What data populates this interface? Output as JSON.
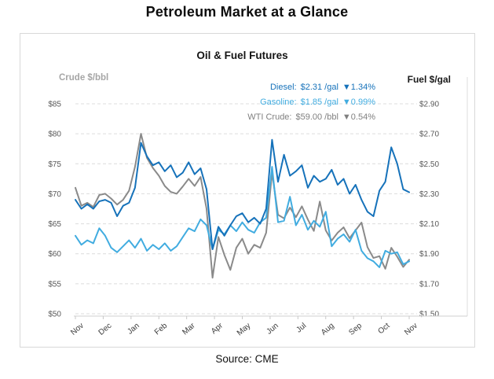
{
  "page_title": "Petroleum Market at a Glance",
  "source_note": "Source: CME",
  "legend": [
    {
      "label": "Diesel:",
      "value": "$2.31 /gal",
      "change": "▼1.34%",
      "color": "#1672ba"
    },
    {
      "label": "Gasoline:",
      "value": "$1.85 /gal",
      "change": "▼0.99%",
      "color": "#41ace0"
    },
    {
      "label": "WTI Crude:",
      "value": "$59.00 /bbl",
      "change": "▼0.54%",
      "color": "#808080"
    }
  ],
  "chart_data": {
    "type": "line",
    "title": "Oil & Fuel Futures",
    "left_axis": {
      "label": "Crude $/bbl",
      "min": 50,
      "max": 85,
      "tick_step": 5,
      "tick_labels": [
        "$50",
        "$55",
        "$60",
        "$65",
        "$70",
        "$75",
        "$80",
        "$85"
      ]
    },
    "right_axis": {
      "label": "Fuel $/gal",
      "min": 1.5,
      "max": 2.9,
      "tick_step": 0.2,
      "tick_labels": [
        "$1.50",
        "$1.70",
        "$1.90",
        "$2.10",
        "$2.30",
        "$2.50",
        "$2.70",
        "$2.90"
      ]
    },
    "x_tick_labels": [
      "Nov",
      "Dec",
      "Jan",
      "Feb",
      "Mar",
      "Apr",
      "May",
      "Jun",
      "Jul",
      "Aug",
      "Sep",
      "Oct",
      "Nov"
    ],
    "grid": "horizontal-dashed",
    "legend_position": "top-right",
    "series": [
      {
        "name": "WTI Crude",
        "axis": "left",
        "unit": "$/bbl",
        "color": "#8a8a8a",
        "last_value": 59.0,
        "values": [
          71.0,
          68.0,
          68.5,
          67.8,
          69.8,
          70.0,
          69.2,
          68.2,
          69.0,
          70.5,
          74.5,
          80.0,
          76.0,
          74.3,
          73.0,
          71.3,
          70.3,
          70.0,
          71.2,
          72.5,
          71.3,
          72.8,
          67.5,
          56.0,
          62.8,
          59.8,
          57.3,
          61.0,
          62.5,
          60.0,
          61.5,
          61.0,
          63.5,
          73.5,
          66.5,
          65.9,
          67.7,
          66.1,
          67.9,
          65.7,
          63.8,
          68.7,
          63.9,
          62.2,
          63.5,
          64.4,
          62.6,
          63.9,
          65.2,
          61.1,
          59.3,
          59.6,
          57.5,
          61.0,
          59.5,
          57.8,
          59.0
        ]
      },
      {
        "name": "Gasoline",
        "axis": "right",
        "unit": "$/gal",
        "color": "#41ace0",
        "last_value": 1.85,
        "values": [
          2.02,
          1.96,
          1.99,
          1.97,
          2.07,
          2.02,
          1.94,
          1.91,
          1.95,
          1.99,
          1.94,
          2.0,
          1.92,
          1.96,
          1.93,
          1.97,
          1.92,
          1.95,
          2.01,
          2.07,
          2.05,
          2.13,
          2.09,
          1.93,
          2.06,
          2.03,
          2.09,
          2.05,
          2.11,
          2.06,
          2.04,
          2.11,
          2.14,
          2.48,
          2.11,
          2.12,
          2.28,
          2.09,
          2.16,
          2.06,
          2.12,
          2.08,
          2.18,
          1.95,
          2.0,
          2.03,
          1.98,
          2.06,
          1.92,
          1.87,
          1.85,
          1.81,
          1.92,
          1.9,
          1.91,
          1.83,
          1.85
        ]
      },
      {
        "name": "Diesel",
        "axis": "right",
        "unit": "$/gal",
        "color": "#1672ba",
        "last_value": 2.31,
        "values": [
          2.26,
          2.2,
          2.23,
          2.2,
          2.25,
          2.26,
          2.24,
          2.15,
          2.22,
          2.24,
          2.34,
          2.64,
          2.55,
          2.49,
          2.51,
          2.45,
          2.49,
          2.41,
          2.44,
          2.51,
          2.43,
          2.47,
          2.33,
          1.93,
          2.08,
          2.02,
          2.09,
          2.15,
          2.17,
          2.11,
          2.14,
          2.1,
          2.2,
          2.66,
          2.38,
          2.56,
          2.42,
          2.45,
          2.49,
          2.34,
          2.42,
          2.38,
          2.4,
          2.46,
          2.36,
          2.4,
          2.3,
          2.36,
          2.26,
          2.18,
          2.15,
          2.32,
          2.38,
          2.61,
          2.5,
          2.33,
          2.31
        ]
      }
    ]
  }
}
